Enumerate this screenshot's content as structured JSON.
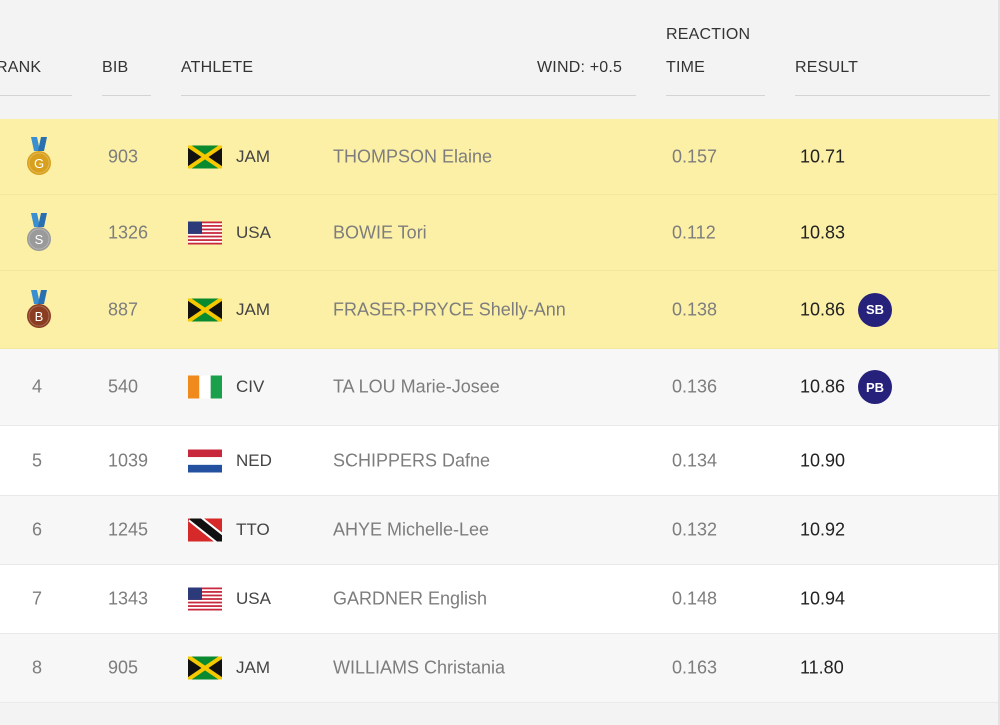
{
  "header": {
    "rank": "RANK",
    "bib": "BIB",
    "athlete": "ATHLETE",
    "wind": "WIND: +0.5",
    "reaction_line1": "REACTION",
    "reaction_line2": "TIME",
    "result": "RESULT"
  },
  "rows": [
    {
      "rank": "",
      "medal": "G",
      "medal_color": "#d8a01d",
      "bib": "903",
      "country": "JAM",
      "flag": "jam",
      "name": "THOMPSON Elaine",
      "reaction": "0.157",
      "result": "10.71",
      "badge": ""
    },
    {
      "rank": "",
      "medal": "S",
      "medal_color": "#9a9a9a",
      "bib": "1326",
      "country": "USA",
      "flag": "usa",
      "name": "BOWIE Tori",
      "reaction": "0.112",
      "result": "10.83",
      "badge": ""
    },
    {
      "rank": "",
      "medal": "B",
      "medal_color": "#8a3d20",
      "bib": "887",
      "country": "JAM",
      "flag": "jam",
      "name": "FRASER-PRYCE Shelly-Ann",
      "reaction": "0.138",
      "result": "10.86",
      "badge": "SB"
    },
    {
      "rank": "4",
      "medal": "",
      "bib": "540",
      "country": "CIV",
      "flag": "civ",
      "name": "TA LOU Marie-Josee",
      "reaction": "0.136",
      "result": "10.86",
      "badge": "PB"
    },
    {
      "rank": "5",
      "medal": "",
      "bib": "1039",
      "country": "NED",
      "flag": "ned",
      "name": "SCHIPPERS Dafne",
      "reaction": "0.134",
      "result": "10.90",
      "badge": ""
    },
    {
      "rank": "6",
      "medal": "",
      "bib": "1245",
      "country": "TTO",
      "flag": "tto",
      "name": "AHYE Michelle-Lee",
      "reaction": "0.132",
      "result": "10.92",
      "badge": ""
    },
    {
      "rank": "7",
      "medal": "",
      "bib": "1343",
      "country": "USA",
      "flag": "usa",
      "name": "GARDNER English",
      "reaction": "0.148",
      "result": "10.94",
      "badge": ""
    },
    {
      "rank": "8",
      "medal": "",
      "bib": "905",
      "country": "JAM",
      "flag": "jam",
      "name": "WILLIAMS Christania",
      "reaction": "0.163",
      "result": "11.80",
      "badge": ""
    }
  ],
  "colors": {
    "medal_row_bg": "#fcf0a6",
    "badge_bg": "#26217a"
  }
}
